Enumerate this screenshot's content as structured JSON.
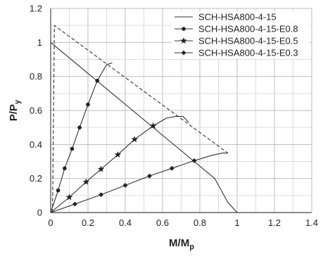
{
  "chart_data": {
    "type": "line",
    "title": "",
    "xlabel": "M/M",
    "xlabel_sub": "p",
    "ylabel": "P/P",
    "ylabel_sub": "y",
    "xlim": [
      0,
      1.4
    ],
    "ylim": [
      0,
      1.2
    ],
    "xticks": [
      0,
      0.2,
      0.4,
      0.6,
      0.8,
      1,
      1.2,
      1.4
    ],
    "yticks": [
      0,
      0.2,
      0.4,
      0.6,
      0.8,
      1,
      1.2
    ],
    "xtick_labels": [
      "0",
      "0.2",
      "0.4",
      "0.6",
      "0.8",
      "1",
      "1.2",
      "1.4"
    ],
    "ytick_labels": [
      "0",
      "0.2",
      "0.4",
      "0.6",
      "0.8",
      "1",
      "1.2"
    ],
    "grid": true,
    "legend_position": "top-right",
    "series": [
      {
        "name": "SCH-HSA800-4-15",
        "style": "solid",
        "marker": "none",
        "points": [
          [
            0,
            1.0
          ],
          [
            0.88,
            0.2
          ],
          [
            0.91,
            0.14
          ],
          [
            0.95,
            0.06
          ],
          [
            1.0,
            0.0
          ]
        ]
      },
      {
        "name": "SCH-HSA800-4-15-E0.8",
        "style": "solid",
        "marker": "circle",
        "points": [
          [
            0,
            0
          ],
          [
            0.04,
            0.13
          ],
          [
            0.075,
            0.26
          ],
          [
            0.115,
            0.375
          ],
          [
            0.155,
            0.5
          ],
          [
            0.2,
            0.635
          ],
          [
            0.25,
            0.775
          ],
          [
            0.3,
            0.87
          ],
          [
            0.33,
            0.88
          ]
        ],
        "marker_points": [
          [
            0.04,
            0.13
          ],
          [
            0.075,
            0.26
          ],
          [
            0.115,
            0.375
          ],
          [
            0.155,
            0.5
          ],
          [
            0.2,
            0.635
          ],
          [
            0.25,
            0.775
          ]
        ]
      },
      {
        "name": "SCH-HSA800-4-15-E0.5",
        "style": "solid",
        "marker": "star",
        "points": [
          [
            0,
            0
          ],
          [
            0.1,
            0.09
          ],
          [
            0.19,
            0.18
          ],
          [
            0.27,
            0.255
          ],
          [
            0.36,
            0.34
          ],
          [
            0.45,
            0.43
          ],
          [
            0.55,
            0.51
          ],
          [
            0.62,
            0.555
          ],
          [
            0.67,
            0.565
          ],
          [
            0.71,
            0.565
          ],
          [
            0.74,
            0.53
          ]
        ],
        "marker_points": [
          [
            0.1,
            0.09
          ],
          [
            0.19,
            0.18
          ],
          [
            0.27,
            0.255
          ],
          [
            0.36,
            0.34
          ],
          [
            0.45,
            0.43
          ],
          [
            0.55,
            0.51
          ]
        ]
      },
      {
        "name": "SCH-HSA800-4-15-E0.3",
        "style": "solid",
        "marker": "diamond",
        "points": [
          [
            0,
            0
          ],
          [
            0.13,
            0.05
          ],
          [
            0.27,
            0.105
          ],
          [
            0.4,
            0.16
          ],
          [
            0.53,
            0.215
          ],
          [
            0.65,
            0.26
          ],
          [
            0.77,
            0.305
          ],
          [
            0.86,
            0.335
          ],
          [
            0.92,
            0.35
          ],
          [
            0.95,
            0.35
          ]
        ],
        "marker_points": [
          [
            0.13,
            0.05
          ],
          [
            0.27,
            0.105
          ],
          [
            0.4,
            0.16
          ],
          [
            0.53,
            0.215
          ],
          [
            0.65,
            0.26
          ],
          [
            0.77,
            0.305
          ]
        ]
      },
      {
        "name": "",
        "style": "dashed",
        "marker": "none",
        "points": [
          [
            0.01,
            0.0
          ],
          [
            0.02,
            1.1
          ],
          [
            0.95,
            0.35
          ]
        ]
      }
    ]
  }
}
